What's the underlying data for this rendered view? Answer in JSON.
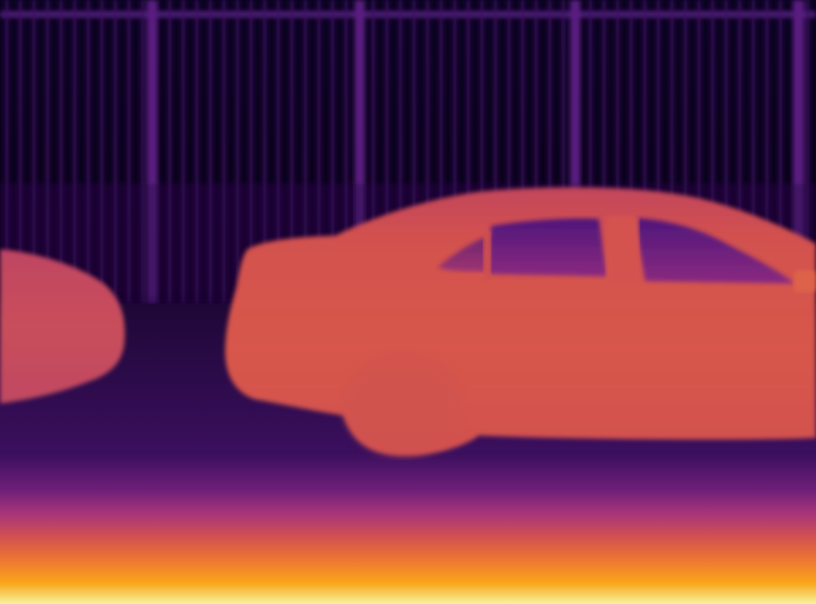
{
  "image": {
    "kind": "depth-map",
    "colormap": "inferno",
    "palette": {
      "far": "#050214",
      "far_mid": "#2a0a4a",
      "mid": "#5a1a78",
      "mid_warm": "#a8357a",
      "car_body": "#d8574e",
      "car_window": "#6a2180",
      "near": "#f08a2a",
      "nearest": "#f8f4a0"
    },
    "objects": [
      "background-fence",
      "parked-car-left",
      "parked-car-main",
      "road-surface"
    ]
  }
}
